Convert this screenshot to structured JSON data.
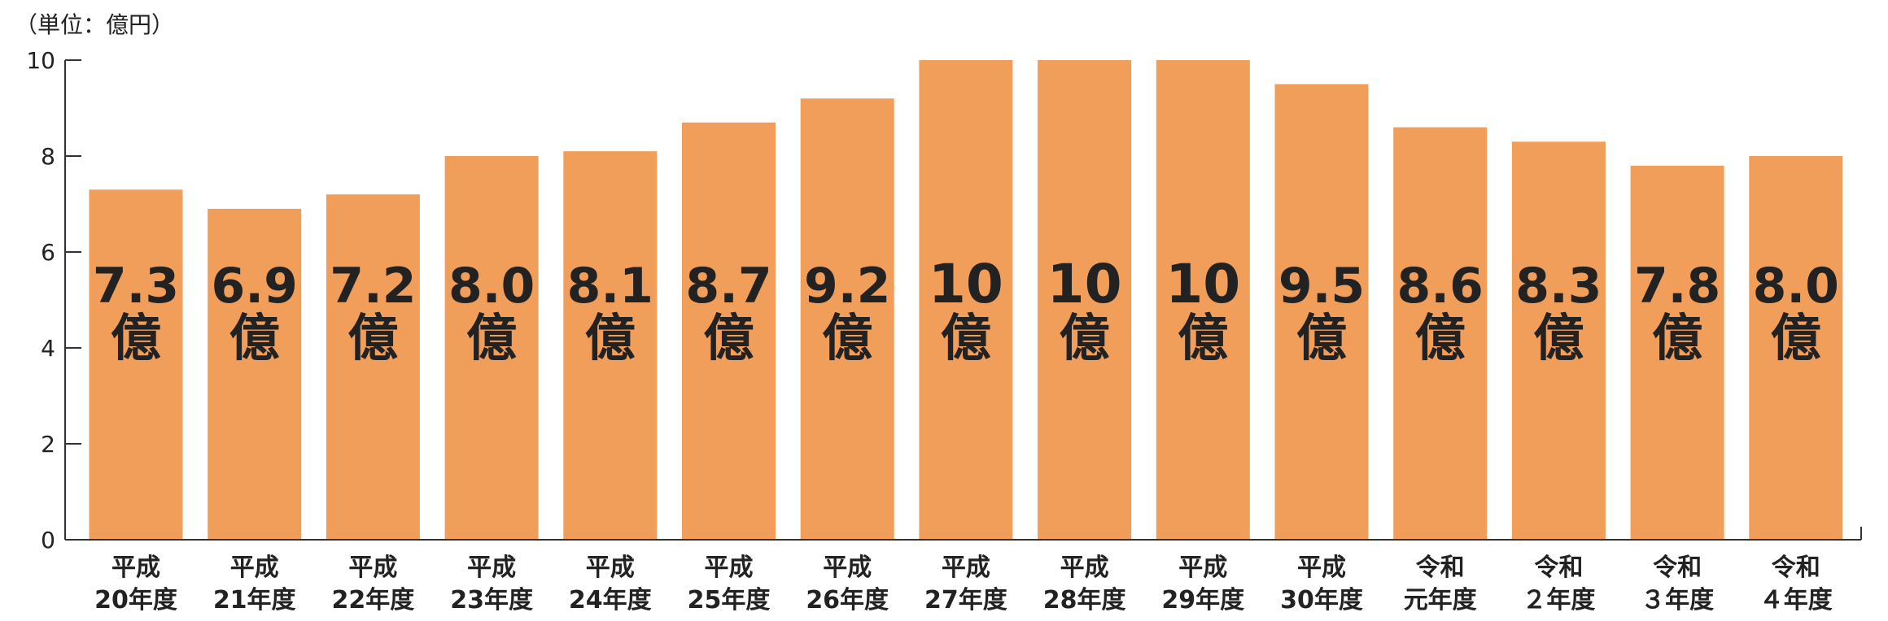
{
  "chart_data": {
    "type": "bar",
    "unit_label": "（単位：億円）",
    "categories": [
      [
        "平成",
        "20年度"
      ],
      [
        "平成",
        "21年度"
      ],
      [
        "平成",
        "22年度"
      ],
      [
        "平成",
        "23年度"
      ],
      [
        "平成",
        "24年度"
      ],
      [
        "平成",
        "25年度"
      ],
      [
        "平成",
        "26年度"
      ],
      [
        "平成",
        "27年度"
      ],
      [
        "平成",
        "28年度"
      ],
      [
        "平成",
        "29年度"
      ],
      [
        "平成",
        "30年度"
      ],
      [
        "令和",
        "元年度"
      ],
      [
        "令和",
        "２年度"
      ],
      [
        "令和",
        "３年度"
      ],
      [
        "令和",
        "４年度"
      ]
    ],
    "values": [
      7.3,
      6.9,
      7.2,
      8.0,
      8.1,
      8.7,
      9.2,
      10,
      10,
      10,
      9.5,
      8.6,
      8.3,
      7.8,
      8.0
    ],
    "bar_value_labels": [
      "7.3",
      "6.9",
      "7.2",
      "8.0",
      "8.1",
      "8.7",
      "9.2",
      "10",
      "10",
      "10",
      "9.5",
      "8.6",
      "8.3",
      "7.8",
      "8.0"
    ],
    "bar_unit_label": "億",
    "ylim": [
      0,
      10
    ],
    "yticks": [
      0,
      2,
      4,
      6,
      8,
      10
    ],
    "grid": false,
    "colors": {
      "bar": "#F29E5B",
      "text": "#222222",
      "axis": "#333333"
    }
  }
}
